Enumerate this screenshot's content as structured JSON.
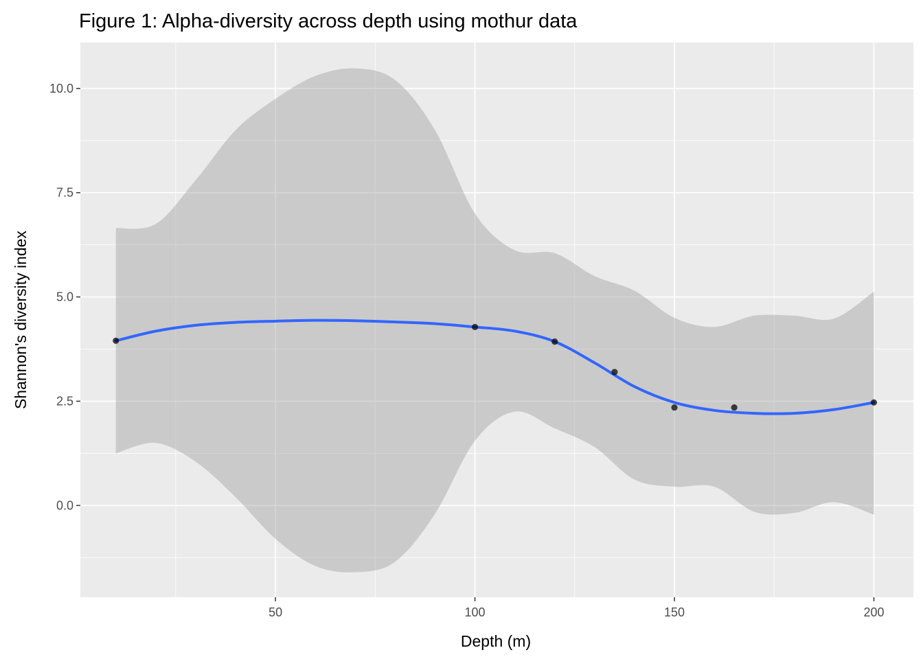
{
  "chart_data": {
    "type": "scatter",
    "title": "Figure 1: Alpha-diversity across depth using mothur data",
    "xlabel": "Depth (m)",
    "ylabel": "Shannon's diversity index",
    "xlim": [
      1.1,
      209.9
    ],
    "ylim": [
      -2.2,
      11.1
    ],
    "x_ticks": [
      50,
      100,
      150,
      200
    ],
    "x_tick_labels": [
      "50",
      "100",
      "150",
      "200"
    ],
    "y_ticks": [
      0,
      2.5,
      5,
      7.5,
      10
    ],
    "y_tick_labels": [
      "0.0",
      "2.5",
      "5.0",
      "7.5",
      "10.0"
    ],
    "grid": true,
    "legend": "none",
    "points": [
      {
        "x": 10,
        "y": 3.95
      },
      {
        "x": 100,
        "y": 4.28
      },
      {
        "x": 120,
        "y": 3.93
      },
      {
        "x": 135,
        "y": 3.2
      },
      {
        "x": 150,
        "y": 2.35
      },
      {
        "x": 165,
        "y": 2.35
      },
      {
        "x": 200,
        "y": 2.47
      }
    ],
    "smooth": {
      "method": "loess",
      "x": [
        10,
        20,
        30,
        40,
        50,
        60,
        70,
        80,
        90,
        100,
        110,
        120,
        130,
        140,
        150,
        160,
        170,
        180,
        190,
        200
      ],
      "y": [
        3.95,
        4.18,
        4.32,
        4.39,
        4.42,
        4.44,
        4.43,
        4.4,
        4.36,
        4.28,
        4.18,
        3.93,
        3.42,
        2.85,
        2.47,
        2.28,
        2.21,
        2.21,
        2.3,
        2.47
      ],
      "upper": [
        6.65,
        6.75,
        7.8,
        9.0,
        9.75,
        10.3,
        10.48,
        10.2,
        9.0,
        7.0,
        6.12,
        6.05,
        5.5,
        5.15,
        4.5,
        4.28,
        4.55,
        4.55,
        4.48,
        5.13
      ],
      "lower": [
        1.25,
        1.5,
        1.05,
        0.2,
        -0.8,
        -1.45,
        -1.6,
        -1.35,
        -0.2,
        1.55,
        2.25,
        1.85,
        1.4,
        0.62,
        0.45,
        0.45,
        -0.15,
        -0.18,
        0.08,
        -0.22
      ]
    },
    "colors": {
      "panel_background": "#ebebeb",
      "grid_major": "#ffffff",
      "ribbon": "#999999",
      "line": "#3366ff",
      "points": "#000000"
    }
  }
}
